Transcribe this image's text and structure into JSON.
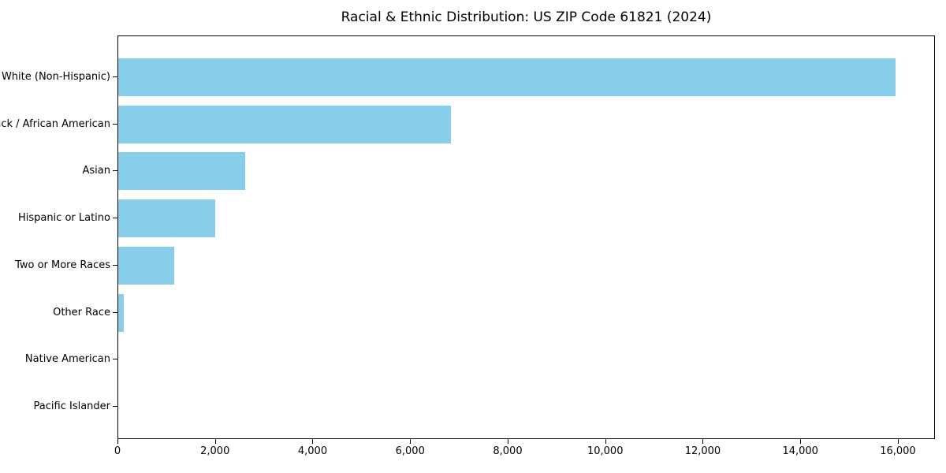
{
  "chart_data": {
    "type": "bar",
    "orientation": "horizontal",
    "title": "Racial & Ethnic Distribution: US ZIP Code 61821 (2024)",
    "categories": [
      "White (Non-Hispanic)",
      "Black / African American",
      "Asian",
      "Hispanic or Latino",
      "Two or More Races",
      "Other Race",
      "Native American",
      "Pacific Islander"
    ],
    "values": [
      15960,
      6830,
      2610,
      1990,
      1150,
      110,
      0,
      0
    ],
    "xlabel": "",
    "ylabel": "",
    "xlim": [
      0,
      16760
    ],
    "x_ticks": [
      0,
      2000,
      4000,
      6000,
      8000,
      10000,
      12000,
      14000,
      16000
    ],
    "x_tick_labels": [
      "0",
      "2,000",
      "4,000",
      "6,000",
      "8,000",
      "10,000",
      "12,000",
      "14,000",
      "16,000"
    ],
    "bar_color": "#87CEEB",
    "axis_color": "#000000",
    "text_color": "#000000",
    "background_color": "#ffffff",
    "grid": false,
    "legend": null
  }
}
